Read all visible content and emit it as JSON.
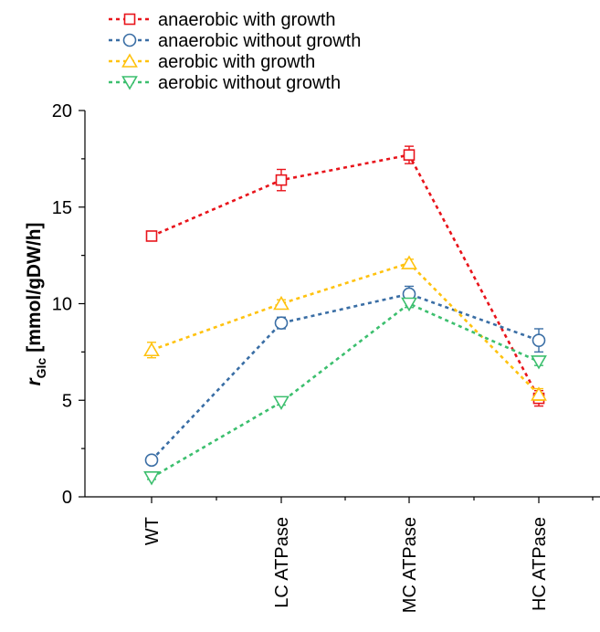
{
  "chart_data": {
    "type": "line",
    "categories": [
      "WT",
      "LC ATPase",
      "MC ATPase",
      "HC ATPase"
    ],
    "ylabel": {
      "symbol": "r",
      "subscript": "Glc",
      "unit": "[mmol/gDW/h]"
    },
    "ylim": [
      0,
      20
    ],
    "yticks": [
      "0",
      "5",
      "10",
      "15",
      "20"
    ],
    "grid": false,
    "legend_position": "top-left",
    "series": [
      {
        "name": "anaerobic with growth",
        "color": "#e8141b",
        "marker": "square",
        "values": [
          13.5,
          16.4,
          17.7,
          5.1
        ],
        "errors": [
          0.15,
          0.55,
          0.45,
          0.4
        ]
      },
      {
        "name": "anaerobic without growth",
        "color": "#3a6ea5",
        "marker": "circle",
        "values": [
          1.9,
          9.0,
          10.5,
          8.1
        ],
        "errors": [
          0.15,
          0.3,
          0.4,
          0.6
        ]
      },
      {
        "name": "aerobic with growth",
        "color": "#ffc20e",
        "marker": "triangle-up",
        "values": [
          7.6,
          10.0,
          12.1,
          5.3
        ],
        "errors": [
          0.4,
          0.2,
          0.2,
          0.3
        ]
      },
      {
        "name": "aerobic without growth",
        "color": "#3cbf6e",
        "marker": "triangle-down",
        "values": [
          1.0,
          4.9,
          10.0,
          7.0
        ],
        "errors": [
          0.1,
          0.15,
          0.2,
          0.2
        ]
      }
    ]
  }
}
